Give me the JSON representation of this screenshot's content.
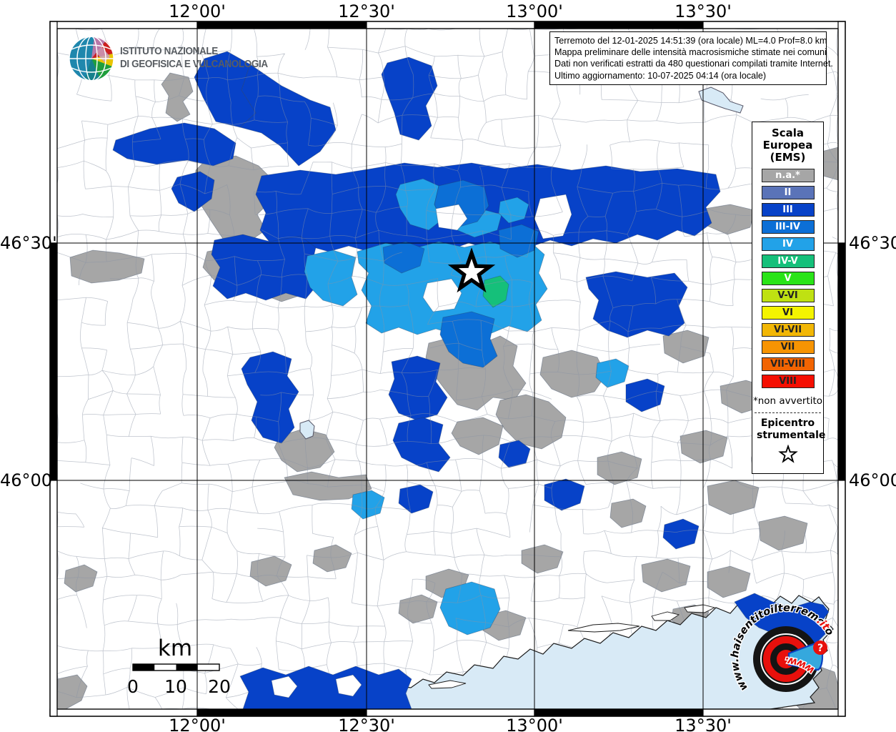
{
  "info_box": {
    "line1": "Terremoto del 12-01-2025 14:51:39 (ora locale) ML=4.0 Prof=8.0 km",
    "line2": "Mappa preliminare delle intensità macrosismiche stimate nei comuni",
    "line3": "Dati non verificati estratti da 480 questionari compilati tramite Internet.",
    "line4": "Ultimo aggiornamento: 10-07-2025 04:14 (ora locale)"
  },
  "branding": {
    "institute_line1": "ISTITUTO NAZIONALE",
    "institute_line2": "DI GEOFISICA E VULCANOLOGIA",
    "website_text": "www.haisentitoilterremoto",
    "website_tld": ".it",
    "website_bottom": "www.",
    "question_mark": "?"
  },
  "legend": {
    "title_lines": [
      "Scala",
      "Europea",
      "(EMS)"
    ],
    "items": [
      {
        "label": "n.a.*",
        "color": "#a6a6a6",
        "text": "#ffffff"
      },
      {
        "label": "II",
        "color": "#5a73b8",
        "text": "#ffffff"
      },
      {
        "label": "III",
        "color": "#0742c8",
        "text": "#ffffff"
      },
      {
        "label": "III-IV",
        "color": "#0c6fd6",
        "text": "#ffffff"
      },
      {
        "label": "IV",
        "color": "#22a2e8",
        "text": "#ffffff"
      },
      {
        "label": "IV-V",
        "color": "#15c07a",
        "text": "#ffffff"
      },
      {
        "label": "V",
        "color": "#2ae418",
        "text": "#ffffff"
      },
      {
        "label": "V-VI",
        "color": "#bfe112",
        "text": "#222222"
      },
      {
        "label": "VI",
        "color": "#f4f400",
        "text": "#222222"
      },
      {
        "label": "VI-VII",
        "color": "#f2b705",
        "text": "#222222"
      },
      {
        "label": "VII",
        "color": "#f79402",
        "text": "#222222"
      },
      {
        "label": "VII-VIII",
        "color": "#f26402",
        "text": "#222222"
      },
      {
        "label": "VIII",
        "color": "#f50f02",
        "text": "#222222"
      }
    ],
    "footnote": "*non avvertito",
    "epicenter_title": "Epicentro strumentale"
  },
  "axes": {
    "lon_labels": [
      "12°00'",
      "12°30'",
      "13°00'",
      "13°30'"
    ],
    "lat_labels": [
      "46°30'",
      "46°00'"
    ]
  },
  "scale_bar": {
    "unit": "km",
    "tick_labels": [
      "0",
      "10",
      "20"
    ]
  },
  "map": {
    "sea_color": "#d8eaf6",
    "land_color": "#ffffff",
    "epicenter_symbol": "star"
  }
}
